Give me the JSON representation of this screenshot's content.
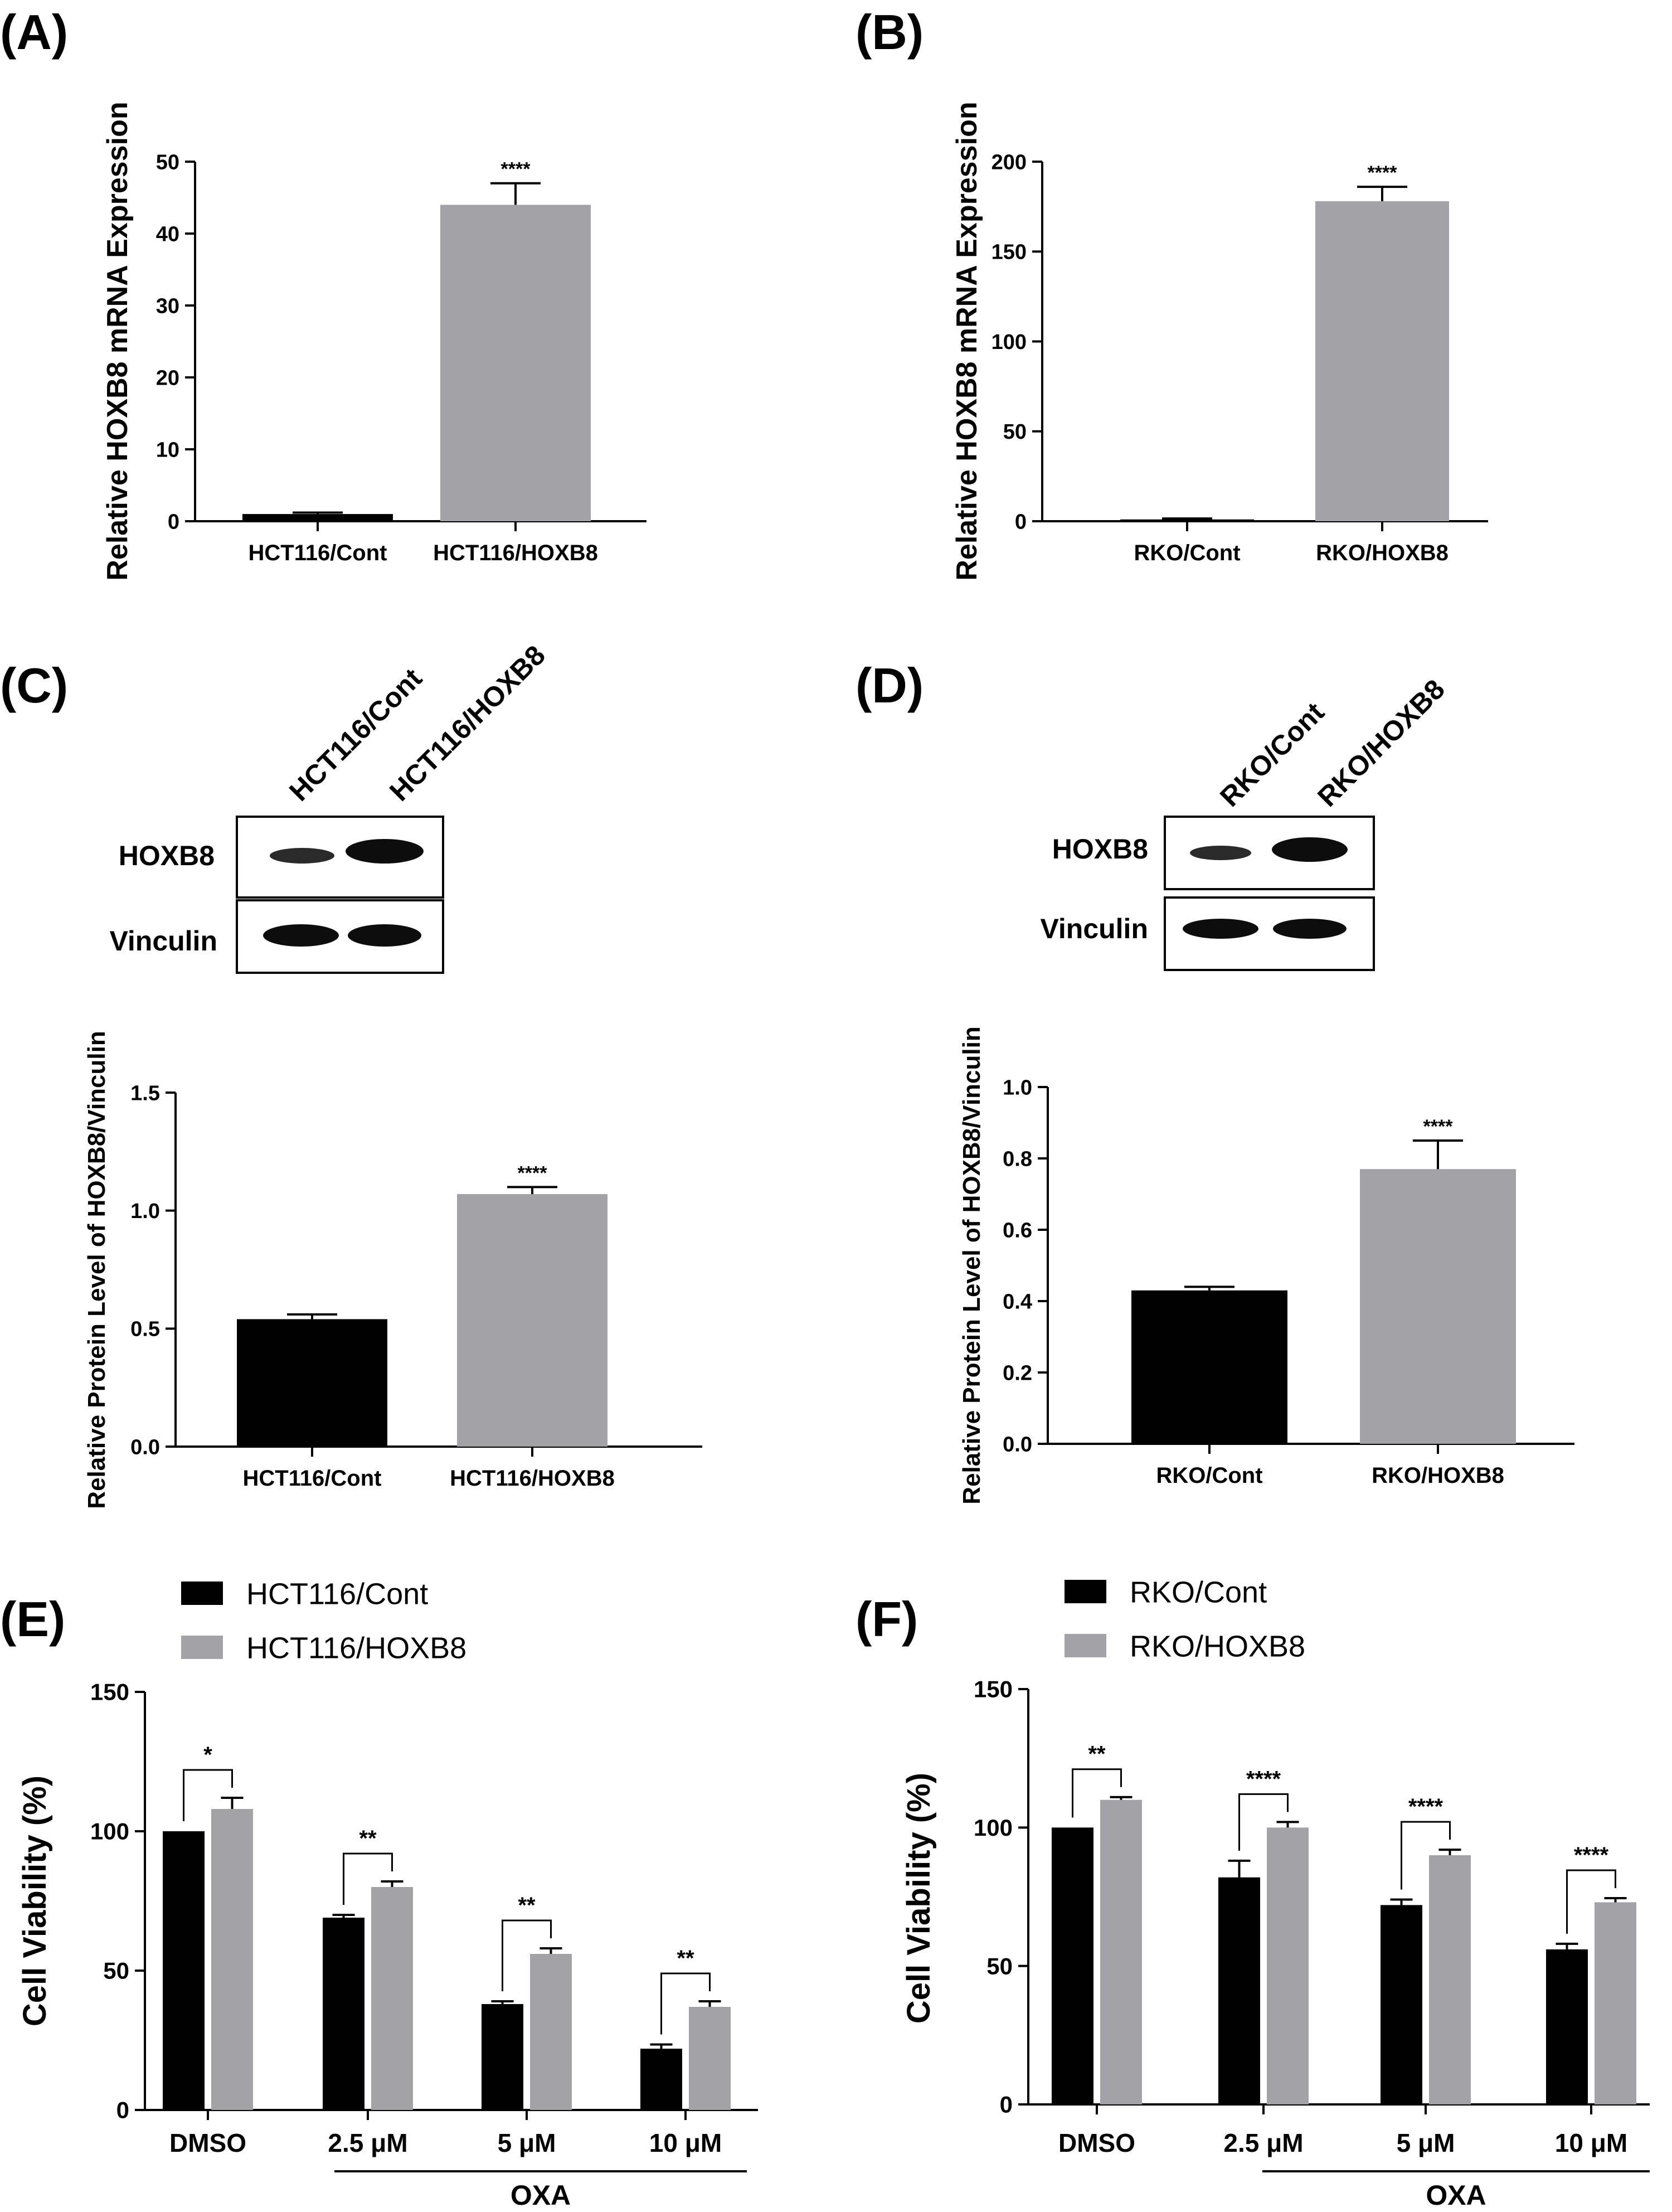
{
  "panels": {
    "A": {
      "label": "(A)"
    },
    "B": {
      "label": "(B)"
    },
    "C": {
      "label": "(C)",
      "blot": {
        "lanes": [
          "HCT116/Cont",
          "HCT116/HOXB8"
        ],
        "rows": [
          "HOXB8",
          "Vinculin"
        ]
      }
    },
    "D": {
      "label": "(D)",
      "blot": {
        "lanes": [
          "RKO/Cont",
          "RKO/HOXB8"
        ],
        "rows": [
          "HOXB8",
          "Vinculin"
        ]
      }
    },
    "E": {
      "label": "(E)"
    },
    "F": {
      "label": "(F)"
    }
  },
  "colors": {
    "black_bar": "#000000",
    "grey_bar": "#a3a3a7",
    "axis": "#000000"
  },
  "chart_data": [
    {
      "id": "A",
      "type": "bar",
      "ylabel": "Relative HOXB8 mRNA Expression",
      "categories": [
        "HCT116/Cont",
        "HCT116/HOXB8"
      ],
      "values": [
        1,
        44
      ],
      "errors": [
        0.2,
        3
      ],
      "ylim": [
        0,
        50
      ],
      "yticks": [
        "0",
        "10",
        "20",
        "30",
        "40",
        "50"
      ],
      "colors": [
        "#000000",
        "#a3a3a7"
      ],
      "significance": [
        {
          "bar": 1,
          "label": "****"
        }
      ]
    },
    {
      "id": "B",
      "type": "bar",
      "ylabel": "Relative HOXB8 mRNA Expression",
      "categories": [
        "RKO/Cont",
        "RKO/HOXB8"
      ],
      "values": [
        1,
        178
      ],
      "errors": [
        0.5,
        8
      ],
      "ylim": [
        0,
        200
      ],
      "yticks": [
        "0",
        "50",
        "100",
        "150",
        "200"
      ],
      "colors": [
        "#000000",
        "#a3a3a7"
      ],
      "significance": [
        {
          "bar": 1,
          "label": "****"
        }
      ]
    },
    {
      "id": "C",
      "type": "bar",
      "ylabel": "Relative Protein Level of HOXB8/Vinculin",
      "categories": [
        "HCT116/Cont",
        "HCT116/HOXB8"
      ],
      "values": [
        0.54,
        1.07
      ],
      "errors": [
        0.02,
        0.03
      ],
      "ylim": [
        0,
        1.5
      ],
      "yticks": [
        "0.0",
        "0.5",
        "1.0",
        "1.5"
      ],
      "colors": [
        "#000000",
        "#a3a3a7"
      ],
      "significance": [
        {
          "bar": 1,
          "label": "****"
        }
      ]
    },
    {
      "id": "D",
      "type": "bar",
      "ylabel": "Relative Protein Level of HOXB8/Vinculin",
      "categories": [
        "RKO/Cont",
        "RKO/HOXB8"
      ],
      "values": [
        0.43,
        0.77
      ],
      "errors": [
        0.01,
        0.08
      ],
      "ylim": [
        0,
        1.0
      ],
      "yticks": [
        "0.0",
        "0.2",
        "0.4",
        "0.6",
        "0.8",
        "1.0"
      ],
      "colors": [
        "#000000",
        "#a3a3a7"
      ],
      "significance": [
        {
          "bar": 1,
          "label": "****"
        }
      ]
    },
    {
      "id": "E",
      "type": "bar",
      "ylabel": "Cell Viability (%)",
      "categories": [
        "DMSO",
        "2.5 μM",
        "5 μM",
        "10 μM"
      ],
      "group_label": "OXA",
      "series": [
        {
          "name": "HCT116/Cont",
          "values": [
            100,
            69,
            38,
            22
          ],
          "errors": [
            0,
            1,
            1,
            1.5
          ]
        },
        {
          "name": "HCT116/HOXB8",
          "values": [
            108,
            80,
            56,
            37
          ],
          "errors": [
            4,
            2,
            2,
            2
          ]
        }
      ],
      "ylim": [
        0,
        150
      ],
      "yticks": [
        "0",
        "50",
        "100",
        "150"
      ],
      "significance": [
        "*",
        "**",
        "**",
        "**"
      ],
      "legend": "top-left"
    },
    {
      "id": "F",
      "type": "bar",
      "ylabel": "Cell Viability (%)",
      "categories": [
        "DMSO",
        "2.5 μM",
        "5 μM",
        "10 μM"
      ],
      "group_label": "OXA",
      "series": [
        {
          "name": "RKO/Cont",
          "values": [
            100,
            82,
            72,
            56
          ],
          "errors": [
            0,
            6,
            2,
            2
          ]
        },
        {
          "name": "RKO/HOXB8",
          "values": [
            110,
            100,
            90,
            73
          ],
          "errors": [
            1,
            2,
            2,
            1.5
          ]
        }
      ],
      "ylim": [
        0,
        150
      ],
      "yticks": [
        "0",
        "50",
        "100",
        "150"
      ],
      "significance": [
        "**",
        "****",
        "****",
        "****"
      ],
      "legend": "top-left"
    }
  ]
}
